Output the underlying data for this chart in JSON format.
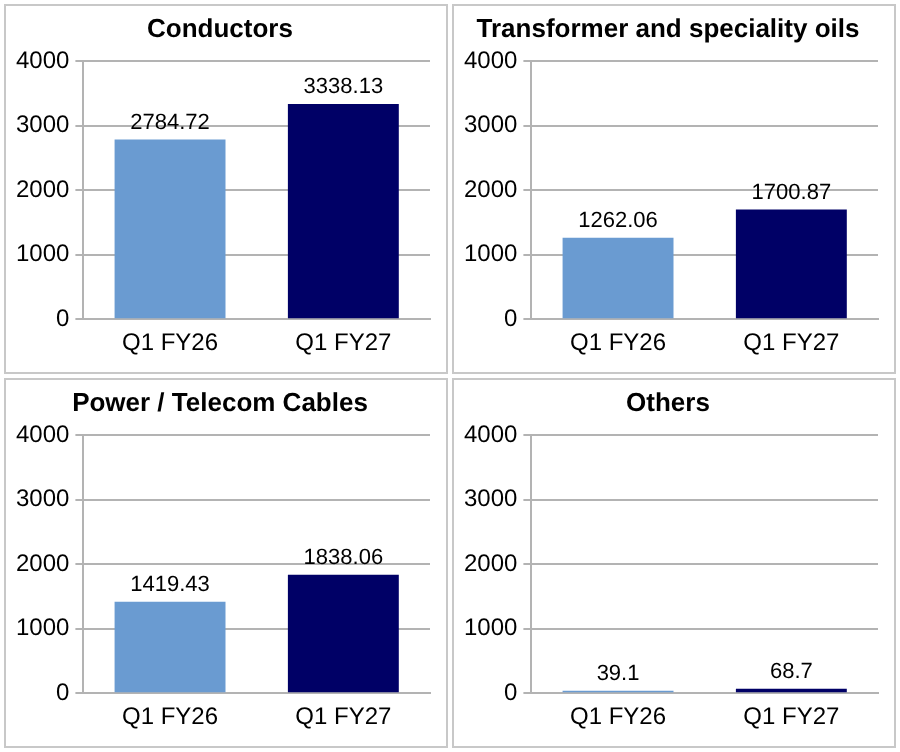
{
  "chart_data": [
    {
      "type": "bar",
      "title": "Conductors",
      "categories": [
        "Q1 FY26",
        "Q1 FY27"
      ],
      "values": [
        2784.72,
        3338.13
      ],
      "colors": [
        "#6a9bd1",
        "#000066"
      ],
      "ylim": [
        0,
        4000
      ],
      "yticks": [
        0,
        1000,
        2000,
        3000,
        4000
      ],
      "grid": "y",
      "data_labels": true
    },
    {
      "type": "bar",
      "title": "Transformer and speciality oils",
      "categories": [
        "Q1 FY26",
        "Q1 FY27"
      ],
      "values": [
        1262.06,
        1700.87
      ],
      "colors": [
        "#6a9bd1",
        "#000066"
      ],
      "ylim": [
        0,
        4000
      ],
      "yticks": [
        0,
        1000,
        2000,
        3000,
        4000
      ],
      "grid": "y",
      "data_labels": true
    },
    {
      "type": "bar",
      "title": "Power / Telecom Cables",
      "categories": [
        "Q1 FY26",
        "Q1 FY27"
      ],
      "values": [
        1419.43,
        1838.06
      ],
      "colors": [
        "#6a9bd1",
        "#000066"
      ],
      "ylim": [
        0,
        4000
      ],
      "yticks": [
        0,
        1000,
        2000,
        3000,
        4000
      ],
      "grid": "y",
      "data_labels": true
    },
    {
      "type": "bar",
      "title": "Others",
      "categories": [
        "Q1 FY26",
        "Q1 FY27"
      ],
      "values": [
        39.1,
        68.7
      ],
      "colors": [
        "#6a9bd1",
        "#000066"
      ],
      "ylim": [
        0,
        4000
      ],
      "yticks": [
        0,
        1000,
        2000,
        3000,
        4000
      ],
      "grid": "y",
      "data_labels": true
    }
  ]
}
